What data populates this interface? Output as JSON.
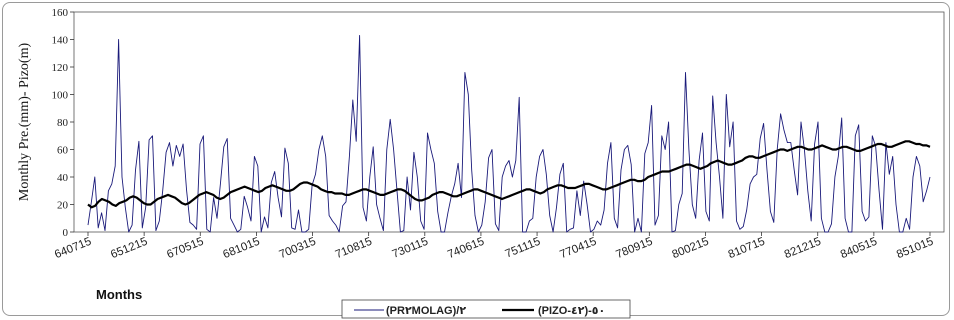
{
  "chart_data": {
    "type": "line",
    "xlabel": "Months",
    "ylabel": "Monthly Pre.(mm)- Pizo(m)",
    "ylim": [
      0,
      160
    ],
    "y_ticks": [
      "0",
      "20",
      "40",
      "60",
      "80",
      "100",
      "120",
      "140",
      "160"
    ],
    "x_tick_labels": [
      "640715",
      "651215",
      "670515",
      "681015",
      "700315",
      "710815",
      "730115",
      "740615",
      "751115",
      "770415",
      "780915",
      "800215",
      "810715",
      "821215",
      "840515",
      "851015"
    ],
    "grid": false,
    "legend_position": "bottom-center",
    "series": [
      {
        "name": "(PR.MOLAG)/2",
        "color": "#1a1a7a",
        "values": [
          5,
          22,
          40,
          3,
          14,
          1,
          30,
          35,
          48,
          140,
          40,
          18,
          0,
          5,
          45,
          66,
          3,
          18,
          67,
          70,
          1,
          8,
          30,
          58,
          65,
          48,
          63,
          55,
          64,
          31,
          7,
          5,
          2,
          64,
          70,
          2,
          0,
          25,
          10,
          35,
          62,
          68,
          10,
          5,
          0,
          2,
          26,
          18,
          8,
          55,
          48,
          0,
          11,
          3,
          36,
          44,
          25,
          11,
          61,
          50,
          3,
          2,
          16,
          0,
          0,
          2,
          34,
          42,
          60,
          70,
          55,
          12,
          8,
          5,
          0,
          19,
          22,
          55,
          96,
          66,
          143,
          18,
          8,
          40,
          62,
          20,
          10,
          1,
          60,
          82,
          60,
          30,
          0,
          1,
          40,
          16,
          58,
          40,
          8,
          2,
          72,
          60,
          50,
          15,
          0,
          0,
          14,
          26,
          35,
          50,
          25,
          116,
          100,
          45,
          12,
          0,
          5,
          22,
          54,
          60,
          6,
          1,
          40,
          48,
          52,
          40,
          52,
          98,
          0,
          0,
          8,
          10,
          40,
          55,
          60,
          42,
          12,
          0,
          18,
          42,
          50,
          0,
          2,
          3,
          30,
          12,
          37,
          20,
          0,
          2,
          8,
          5,
          16,
          50,
          65,
          10,
          3,
          45,
          60,
          63,
          49,
          0,
          10,
          0,
          57,
          65,
          92,
          5,
          12,
          70,
          60,
          80,
          0,
          1,
          20,
          28,
          116,
          60,
          20,
          10,
          52,
          72,
          15,
          8,
          99,
          65,
          40,
          10,
          100,
          62,
          80,
          8,
          2,
          4,
          16,
          35,
          40,
          42,
          68,
          79,
          45,
          15,
          7,
          60,
          86,
          74,
          65,
          65,
          45,
          27,
          80,
          60,
          30,
          8,
          64,
          80,
          10,
          0,
          0,
          6,
          40,
          55,
          83,
          10,
          0,
          0,
          70,
          78,
          15,
          8,
          11,
          70,
          62,
          30,
          2,
          65,
          42,
          55,
          20,
          0,
          0,
          10,
          2,
          40,
          55,
          48,
          22,
          30,
          40
        ]
      },
      {
        "name": "(PIZO-42)-50",
        "color": "#000000",
        "values": [
          20,
          18,
          19,
          22,
          24,
          23,
          22,
          20,
          19,
          21,
          22,
          23,
          25,
          26,
          25,
          23,
          21,
          20,
          20,
          22,
          24,
          25,
          26,
          27,
          26,
          25,
          23,
          21,
          20,
          21,
          23,
          25,
          27,
          28,
          29,
          28,
          27,
          25,
          24,
          25,
          27,
          29,
          30,
          31,
          32,
          33,
          32,
          31,
          30,
          29,
          30,
          32,
          33,
          34,
          33,
          32,
          31,
          30,
          30,
          31,
          33,
          35,
          36,
          36,
          35,
          34,
          33,
          31,
          30,
          29,
          29,
          28,
          28,
          28,
          27,
          27,
          28,
          29,
          30,
          31,
          31,
          30,
          29,
          28,
          27,
          27,
          28,
          29,
          30,
          31,
          31,
          30,
          28,
          26,
          24,
          23,
          23,
          24,
          25,
          27,
          28,
          29,
          29,
          28,
          27,
          26,
          26,
          27,
          28,
          29,
          30,
          31,
          31,
          30,
          29,
          28,
          27,
          26,
          25,
          24,
          25,
          26,
          27,
          28,
          29,
          30,
          31,
          31,
          30,
          29,
          28,
          29,
          31,
          32,
          33,
          34,
          34,
          33,
          32,
          32,
          32,
          33,
          34,
          35,
          35,
          34,
          33,
          32,
          31,
          31,
          32,
          33,
          34,
          35,
          36,
          37,
          38,
          38,
          37,
          37,
          38,
          40,
          41,
          42,
          43,
          44,
          44,
          44,
          45,
          46,
          47,
          48,
          49,
          49,
          48,
          47,
          46,
          47,
          48,
          50,
          51,
          52,
          51,
          50,
          49,
          49,
          50,
          51,
          52,
          54,
          55,
          55,
          54,
          54,
          55,
          56,
          57,
          58,
          59,
          60,
          60,
          59,
          60,
          61,
          62,
          62,
          61,
          60,
          60,
          61,
          62,
          63,
          62,
          61,
          60,
          60,
          61,
          62,
          62,
          61,
          60,
          59,
          59,
          60,
          61,
          62,
          63,
          64,
          64,
          63,
          62,
          62,
          63,
          64,
          65,
          66,
          66,
          65,
          64,
          64,
          63,
          63,
          62
        ]
      }
    ]
  },
  "legend": {
    "series_1_label": "(PR٢MOLAG)/٢",
    "series_2_label": "(PIZO-٤٢)-٥٠"
  }
}
